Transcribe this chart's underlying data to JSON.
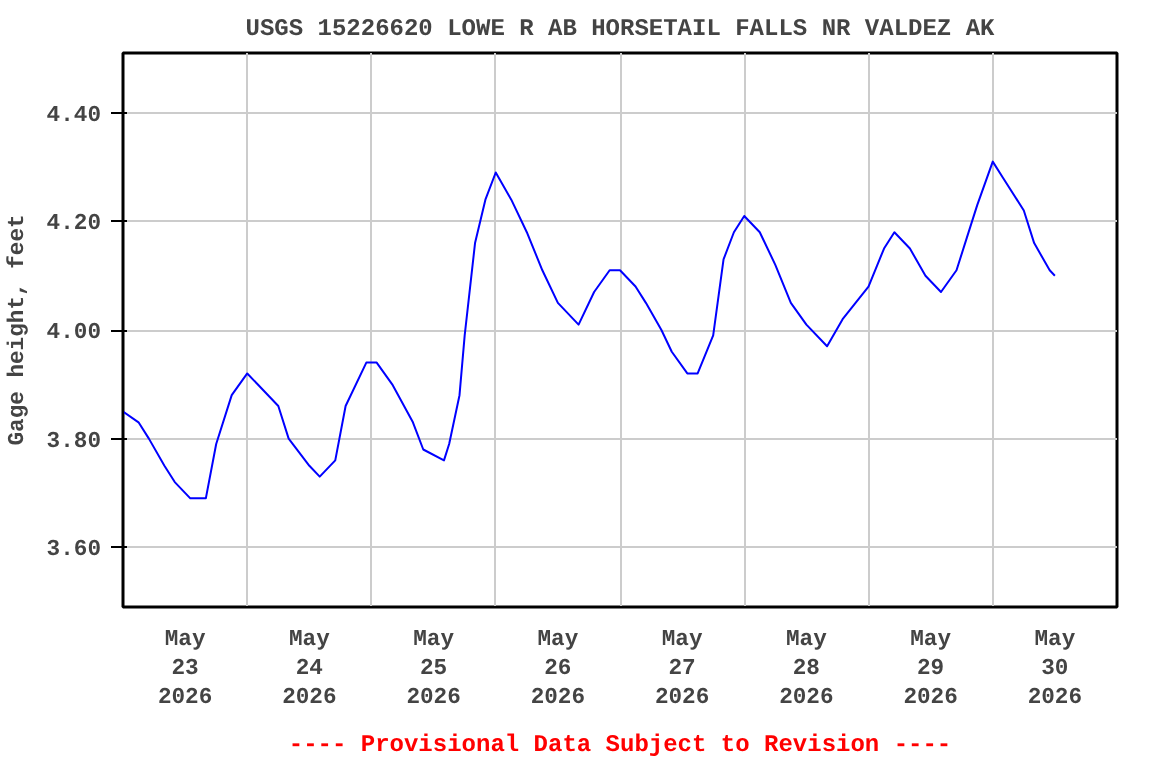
{
  "chart_data": {
    "type": "line",
    "title": "USGS 15226620 LOWE R AB HORSETAIL FALLS NR VALDEZ AK",
    "ylabel": "Gage height, feet",
    "annotations": [
      "---- Provisional Data Subject to Revision ----"
    ],
    "x": [
      "2026-05-23T00:00",
      "2026-05-23T03:00",
      "2026-05-23T05:00",
      "2026-05-23T08:00",
      "2026-05-23T10:00",
      "2026-05-23T13:00",
      "2026-05-23T16:00",
      "2026-05-23T18:00",
      "2026-05-23T21:00",
      "2026-05-24T00:00",
      "2026-05-24T02:00",
      "2026-05-24T06:00",
      "2026-05-24T08:00",
      "2026-05-24T12:00",
      "2026-05-24T14:00",
      "2026-05-24T17:00",
      "2026-05-24T19:00",
      "2026-05-24T23:00",
      "2026-05-25T01:00",
      "2026-05-25T04:00",
      "2026-05-25T08:00",
      "2026-05-25T10:00",
      "2026-05-25T14:00",
      "2026-05-25T15:00",
      "2026-05-25T17:00",
      "2026-05-25T18:00",
      "2026-05-25T20:00",
      "2026-05-25T22:00",
      "2026-05-26T00:00",
      "2026-05-26T03:00",
      "2026-05-26T06:00",
      "2026-05-26T09:00",
      "2026-05-26T12:00",
      "2026-05-26T16:00",
      "2026-05-26T19:00",
      "2026-05-26T22:00",
      "2026-05-27T00:00",
      "2026-05-27T03:00",
      "2026-05-27T05:00",
      "2026-05-27T08:00",
      "2026-05-27T10:00",
      "2026-05-27T13:00",
      "2026-05-27T15:00",
      "2026-05-27T18:00",
      "2026-05-27T20:00",
      "2026-05-27T22:00",
      "2026-05-28T00:00",
      "2026-05-28T03:00",
      "2026-05-28T06:00",
      "2026-05-28T09:00",
      "2026-05-28T12:00",
      "2026-05-28T16:00",
      "2026-05-28T19:00",
      "2026-05-29T00:00",
      "2026-05-29T03:00",
      "2026-05-29T05:00",
      "2026-05-29T08:00",
      "2026-05-29T11:00",
      "2026-05-29T14:00",
      "2026-05-29T17:00",
      "2026-05-29T19:00",
      "2026-05-29T21:00",
      "2026-05-30T00:00",
      "2026-05-30T02:00",
      "2026-05-30T06:00",
      "2026-05-30T08:00",
      "2026-05-30T11:00",
      "2026-05-30T12:00"
    ],
    "series": [
      {
        "color": "#0000ff",
        "values": [
          3.85,
          3.83,
          3.8,
          3.75,
          3.72,
          3.69,
          3.69,
          3.79,
          3.88,
          3.92,
          3.9,
          3.86,
          3.8,
          3.75,
          3.73,
          3.76,
          3.86,
          3.94,
          3.94,
          3.9,
          3.83,
          3.78,
          3.76,
          3.79,
          3.88,
          3.99,
          4.16,
          4.24,
          4.29,
          4.24,
          4.18,
          4.11,
          4.05,
          4.01,
          4.07,
          4.11,
          4.11,
          4.08,
          4.05,
          4.0,
          3.96,
          3.92,
          3.92,
          3.99,
          4.13,
          4.18,
          4.21,
          4.18,
          4.12,
          4.05,
          4.01,
          3.97,
          4.02,
          4.08,
          4.15,
          4.18,
          4.15,
          4.1,
          4.07,
          4.11,
          4.17,
          4.23,
          4.31,
          4.28,
          4.22,
          4.16,
          4.11,
          4.1
        ]
      }
    ],
    "xlim": [
      "2026-05-23T00:00",
      "2026-05-31T00:00"
    ],
    "xticks": [
      {
        "value": "2026-05-23T12:00",
        "label": "May\n23\n2026"
      },
      {
        "value": "2026-05-24T00:00",
        "label": null
      },
      {
        "value": "2026-05-24T12:00",
        "label": "May\n24\n2026"
      },
      {
        "value": "2026-05-25T00:00",
        "label": null
      },
      {
        "value": "2026-05-25T12:00",
        "label": "May\n25\n2026"
      },
      {
        "value": "2026-05-26T00:00",
        "label": null
      },
      {
        "value": "2026-05-26T12:00",
        "label": "May\n26\n2026"
      },
      {
        "value": "2026-05-27T00:00",
        "label": null
      },
      {
        "value": "2026-05-27T12:00",
        "label": "May\n27\n2026"
      },
      {
        "value": "2026-05-28T00:00",
        "label": null
      },
      {
        "value": "2026-05-28T12:00",
        "label": "May\n28\n2026"
      },
      {
        "value": "2026-05-29T00:00",
        "label": null
      },
      {
        "value": "2026-05-29T12:00",
        "label": "May\n29\n2026"
      },
      {
        "value": "2026-05-30T00:00",
        "label": null
      },
      {
        "value": "2026-05-30T12:00",
        "label": "May\n30\n2026"
      }
    ],
    "ylim": [
      3.49,
      4.51
    ],
    "yticks": [
      {
        "value": 3.6,
        "label": "3.60"
      },
      {
        "value": 3.8,
        "label": "3.80"
      },
      {
        "value": 4.0,
        "label": "4.00"
      },
      {
        "value": 4.2,
        "label": "4.20"
      },
      {
        "value": 4.4,
        "label": "4.40"
      }
    ],
    "grid": true,
    "line_style": "solid"
  }
}
